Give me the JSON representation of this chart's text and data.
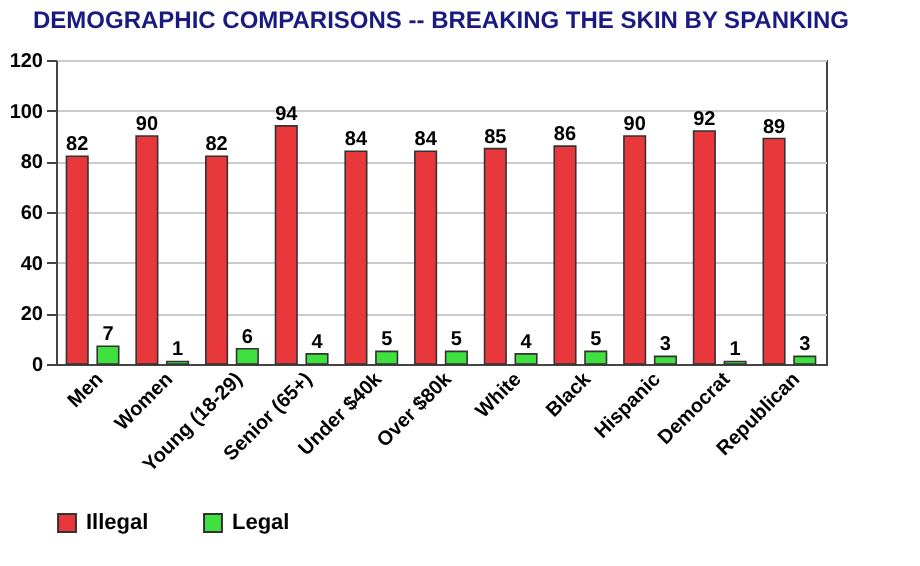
{
  "chart_data": {
    "type": "bar",
    "title": "DEMOGRAPHIC COMPARISONS -- BREAKING THE SKIN BY SPANKING",
    "categories": [
      "Men",
      "Women",
      "Young (18-29)",
      "Senior (65+)",
      "Under $40k",
      "Over $80k",
      "White",
      "Black",
      "Hispanic",
      "Democrat",
      "Republican"
    ],
    "series": [
      {
        "name": "Illegal",
        "color": "#e8383b",
        "values": [
          82,
          90,
          82,
          94,
          84,
          84,
          85,
          86,
          90,
          92,
          89
        ]
      },
      {
        "name": "Legal",
        "color": "#3fe03f",
        "values": [
          7,
          1,
          6,
          4,
          5,
          5,
          4,
          5,
          3,
          1,
          3
        ]
      }
    ],
    "ylim": [
      0,
      120
    ],
    "yticks": [
      0,
      20,
      40,
      60,
      80,
      100,
      120
    ],
    "grid": "y",
    "legend": "bottom",
    "data_labels": true
  }
}
